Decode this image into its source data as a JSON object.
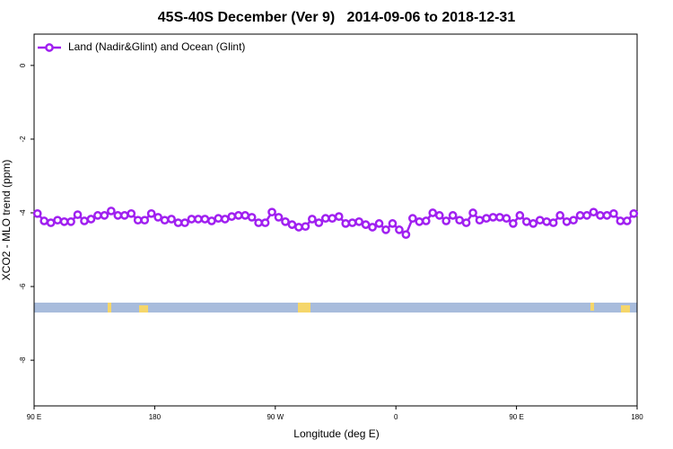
{
  "chart_data": {
    "type": "line",
    "title": "45S-40S December (Ver 9)   2014-09-06 to 2018-12-31",
    "xlabel": "Longitude (deg E)",
    "ylabel": "XCO2 - MLO trend (ppm)",
    "xlim": [
      90,
      540
    ],
    "ylim": [
      -9.24,
      0.85
    ],
    "xticks": [
      {
        "value": 90,
        "label": "90 E"
      },
      {
        "value": 180,
        "label": "180"
      },
      {
        "value": 270,
        "label": "90 W"
      },
      {
        "value": 360,
        "label": "0"
      },
      {
        "value": 450,
        "label": "90 E"
      },
      {
        "value": 540,
        "label": "180"
      }
    ],
    "yticks": [
      0,
      -2,
      -4,
      -6,
      -8
    ],
    "grid": false,
    "legend": "top-left",
    "x": [
      92.5,
      97.5,
      102.5,
      107.5,
      112.5,
      117.5,
      122.5,
      127.5,
      132.5,
      137.5,
      142.5,
      147.5,
      152.5,
      157.5,
      162.5,
      167.5,
      172.5,
      177.5,
      182.5,
      187.5,
      192.5,
      197.5,
      202.5,
      207.5,
      212.5,
      217.5,
      222.5,
      227.5,
      232.5,
      237.5,
      242.5,
      247.5,
      252.5,
      257.5,
      262.5,
      267.5,
      272.5,
      277.5,
      282.5,
      287.5,
      292.5,
      297.5,
      302.5,
      307.5,
      312.5,
      317.5,
      322.5,
      327.5,
      332.5,
      337.5,
      342.5,
      347.5,
      352.5,
      357.5,
      362.5,
      367.5,
      372.5,
      377.5,
      382.5,
      387.5,
      392.5,
      397.5,
      402.5,
      407.5,
      412.5,
      417.5,
      422.5,
      427.5,
      432.5,
      437.5,
      442.5,
      447.5,
      452.5,
      457.5,
      462.5,
      467.5,
      472.5,
      477.5,
      482.5,
      487.5,
      492.5,
      497.5,
      502.5,
      507.5,
      512.5,
      517.5,
      522.5,
      527.5,
      532.5,
      537.5
    ],
    "series": [
      {
        "name": "Land (Nadir&Glint) and Ocean (Glint)",
        "color": "#a020f0",
        "values": [
          -4.02,
          -4.22,
          -4.27,
          -4.2,
          -4.24,
          -4.24,
          -4.05,
          -4.22,
          -4.17,
          -4.07,
          -4.07,
          -3.95,
          -4.07,
          -4.07,
          -4.02,
          -4.2,
          -4.2,
          -4.02,
          -4.12,
          -4.2,
          -4.17,
          -4.27,
          -4.27,
          -4.17,
          -4.17,
          -4.17,
          -4.22,
          -4.15,
          -4.17,
          -4.1,
          -4.07,
          -4.07,
          -4.12,
          -4.27,
          -4.27,
          -3.98,
          -4.12,
          -4.24,
          -4.32,
          -4.39,
          -4.37,
          -4.17,
          -4.27,
          -4.15,
          -4.15,
          -4.1,
          -4.29,
          -4.27,
          -4.24,
          -4.32,
          -4.39,
          -4.29,
          -4.46,
          -4.29,
          -4.46,
          -4.59,
          -4.15,
          -4.24,
          -4.22,
          -4.0,
          -4.07,
          -4.22,
          -4.07,
          -4.2,
          -4.27,
          -4.0,
          -4.2,
          -4.15,
          -4.12,
          -4.12,
          -4.15,
          -4.29,
          -4.07,
          -4.24,
          -4.29,
          -4.2,
          -4.24,
          -4.27,
          -4.07,
          -4.24,
          -4.2,
          -4.07,
          -4.07,
          -3.98,
          -4.07,
          -4.07,
          -4.02,
          -4.22,
          -4.22,
          -4.02
        ]
      }
    ]
  }
}
